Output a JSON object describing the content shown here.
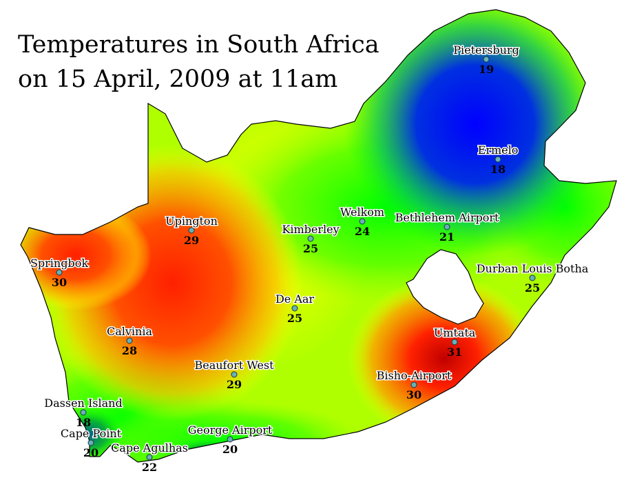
{
  "title": {
    "line1": "Temperatures in South Africa",
    "line2": "on 15 April, 2009 at 11am"
  },
  "color_scale": {
    "cold": "#0000ff",
    "mild": "#00ff00",
    "warm": "#ffff00",
    "hot": "#ff2000"
  },
  "stations": [
    {
      "name": "Pietersburg",
      "temp": "19"
    },
    {
      "name": "Ermelo",
      "temp": "18"
    },
    {
      "name": "Upington",
      "temp": "29"
    },
    {
      "name": "Kimberley",
      "temp": "25"
    },
    {
      "name": "Welkom",
      "temp": "24"
    },
    {
      "name": "Bethlehem Airport",
      "temp": "21"
    },
    {
      "name": "Springbok",
      "temp": "30"
    },
    {
      "name": "Durban Louis Botha",
      "temp": "25"
    },
    {
      "name": "De Aar",
      "temp": "25"
    },
    {
      "name": "Calvinia",
      "temp": "28"
    },
    {
      "name": "Umtata",
      "temp": "31"
    },
    {
      "name": "Beaufort West",
      "temp": "29"
    },
    {
      "name": "Bisho-Airport",
      "temp": "30"
    },
    {
      "name": "Dassen Island",
      "temp": "18"
    },
    {
      "name": "Cape Point",
      "temp": "20"
    },
    {
      "name": "George Airport",
      "temp": "20"
    },
    {
      "name": "Cape Agulhas",
      "temp": "22"
    }
  ]
}
